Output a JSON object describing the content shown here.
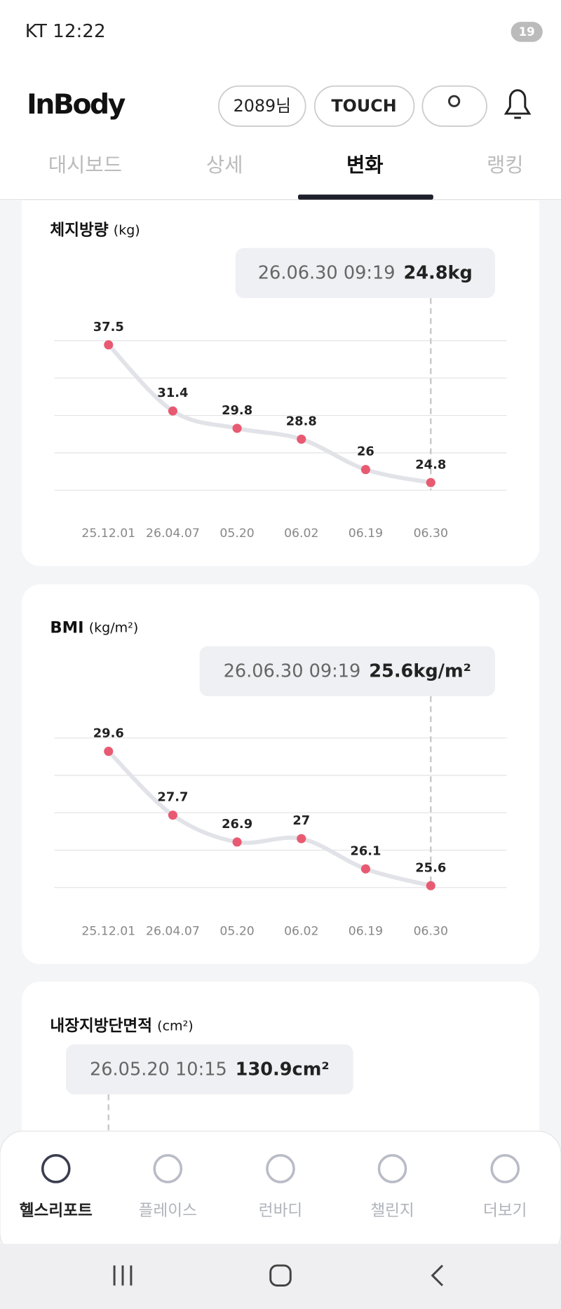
{
  "status_bar": {
    "carrier_time": "KT 12:22",
    "battery": "19"
  },
  "header": {
    "logo": "InBody",
    "user": "2089님",
    "touch": "TOUCH"
  },
  "tabs": [
    "대시보드",
    "상세",
    "변화",
    "랭킹"
  ],
  "cards": [
    {
      "title": "체지방량",
      "unit": "(kg)",
      "tooltip": {
        "datetime": "26.06.30 09:19",
        "value": "24.8kg"
      },
      "dates": [
        "25.12.01",
        "26.04.07",
        "05.20",
        "06.02",
        "06.19",
        "06.30"
      ],
      "values": [
        37.5,
        31.4,
        29.8,
        28.8,
        26.0,
        24.8
      ]
    },
    {
      "title": "BMI",
      "unit": "(kg/m²)",
      "tooltip": {
        "datetime": "26.06.30 09:19",
        "value": "25.6kg/m²"
      },
      "dates": [
        "25.12.01",
        "26.04.07",
        "05.20",
        "06.02",
        "06.19",
        "06.30"
      ],
      "values": [
        29.6,
        27.7,
        26.9,
        27.0,
        26.1,
        25.6
      ]
    },
    {
      "title": "내장지방단면적",
      "unit": "(cm²)",
      "tooltip": {
        "datetime": "26.05.20 10:15",
        "value": "130.9cm²"
      }
    }
  ],
  "bottom_nav": [
    "헬스리포트",
    "플레이스",
    "런바디",
    "챌린지",
    "더보기"
  ]
}
